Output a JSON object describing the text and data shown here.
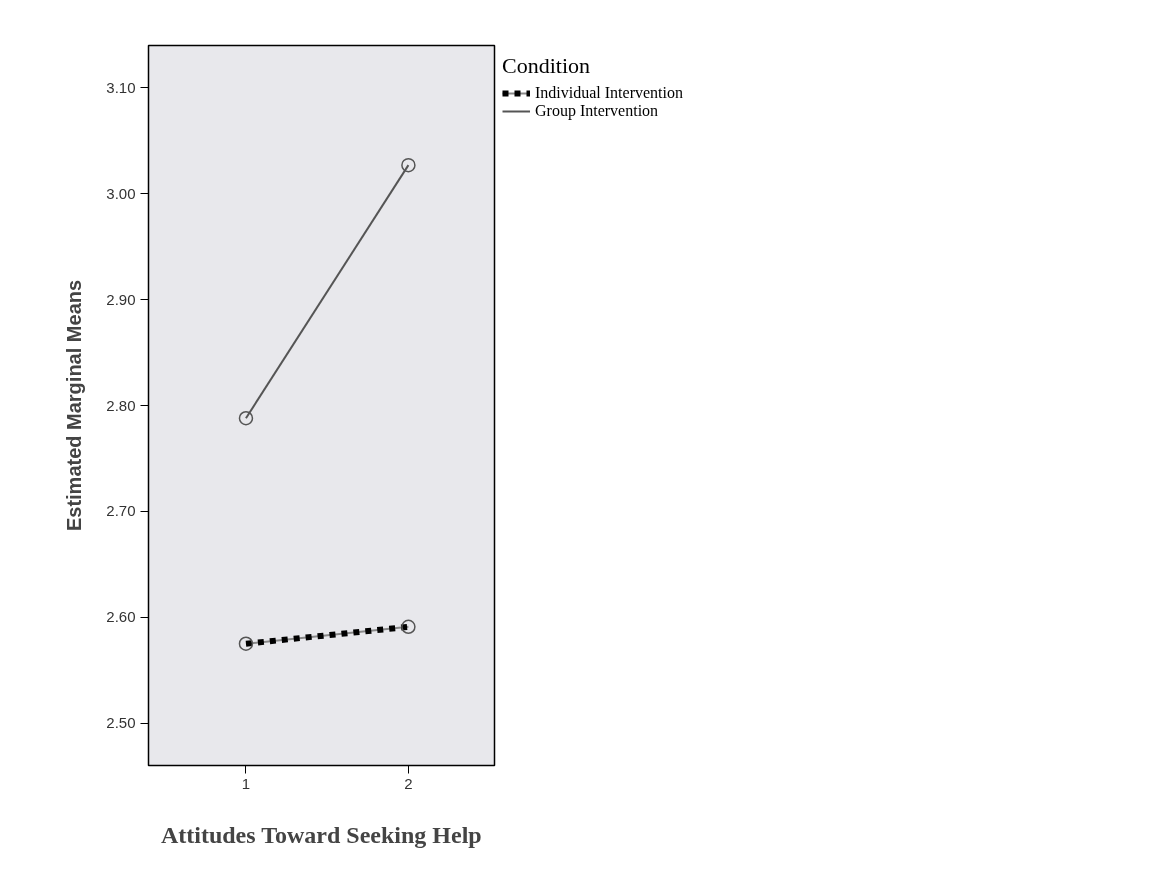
{
  "chart_data": {
    "type": "line",
    "xlabel": "Attitudes Toward Seeking Help",
    "ylabel": "Estimated Marginal Means",
    "legend_title": "Condition",
    "categories": [
      "1",
      "2"
    ],
    "series": [
      {
        "name": "Individual Intervention",
        "color": "#000000",
        "values": [
          2.575,
          2.591
        ],
        "line_style": "dotted"
      },
      {
        "name": "Group Intervention",
        "color": "#555555",
        "values": [
          2.788,
          3.027
        ],
        "line_style": "solid"
      }
    ],
    "ylim": [
      2.46,
      3.14
    ],
    "yticks": [
      {
        "value": 2.5,
        "label": "2.50"
      },
      {
        "value": 2.6,
        "label": "2.60"
      },
      {
        "value": 2.7,
        "label": "2.70"
      },
      {
        "value": 2.8,
        "label": "2.80"
      },
      {
        "value": 2.9,
        "label": "2.90"
      },
      {
        "value": 3.0,
        "label": "3.00"
      },
      {
        "value": 3.1,
        "label": "3.10"
      }
    ],
    "grid": false,
    "legend": "top right",
    "marker": "circle"
  }
}
